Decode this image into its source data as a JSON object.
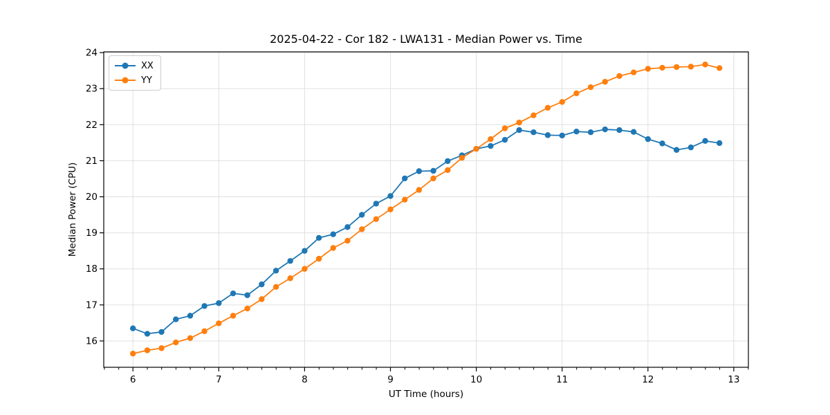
{
  "chart": {
    "title": "2025-04-22 - Cor 182 - LWA131 - Median Power vs. Time",
    "xlabel": "UT Time (hours)",
    "ylabel": "Median Power (CPU)"
  },
  "legend": {
    "items": [
      {
        "label": "XX",
        "color": "#1f77b4"
      },
      {
        "label": "YY",
        "color": "#ff7f0e"
      }
    ]
  },
  "chart_data": {
    "type": "line",
    "title": "2025-04-22 - Cor 182 - LWA131 - Median Power vs. Time",
    "xlabel": "UT Time (hours)",
    "ylabel": "Median Power (CPU)",
    "grid": true,
    "legend_position": "upper left",
    "marker": "circle",
    "xlim": [
      5.66,
      13.17
    ],
    "ylim": [
      15.27,
      24.02
    ],
    "xticks": [
      6,
      7,
      8,
      9,
      10,
      11,
      12,
      13
    ],
    "yticks": [
      16,
      17,
      18,
      19,
      20,
      21,
      22,
      23,
      24
    ],
    "x_minor_tick_step": 0.1667,
    "x": [
      6.0,
      6.167,
      6.333,
      6.5,
      6.667,
      6.833,
      7.0,
      7.167,
      7.333,
      7.5,
      7.667,
      7.833,
      8.0,
      8.167,
      8.333,
      8.5,
      8.667,
      8.833,
      9.0,
      9.167,
      9.333,
      9.5,
      9.667,
      9.833,
      10.0,
      10.167,
      10.333,
      10.5,
      10.667,
      10.833,
      11.0,
      11.167,
      11.333,
      11.5,
      11.667,
      11.833,
      12.0,
      12.167,
      12.333,
      12.5,
      12.667,
      12.833
    ],
    "series": [
      {
        "name": "XX",
        "color": "#1f77b4",
        "values": [
          16.35,
          16.2,
          16.25,
          16.6,
          16.7,
          16.97,
          17.05,
          17.32,
          17.27,
          17.57,
          17.95,
          18.22,
          18.5,
          18.86,
          18.96,
          19.16,
          19.5,
          19.81,
          20.02,
          20.51,
          20.71,
          20.72,
          20.99,
          21.15,
          21.33,
          21.41,
          21.58,
          21.85,
          21.79,
          21.71,
          21.7,
          21.81,
          21.79,
          21.87,
          21.85,
          21.8,
          21.6,
          21.48,
          21.3,
          21.37,
          21.55,
          21.49
        ]
      },
      {
        "name": "YY",
        "color": "#ff7f0e",
        "values": [
          15.65,
          15.74,
          15.8,
          15.96,
          16.08,
          16.27,
          16.49,
          16.7,
          16.9,
          17.16,
          17.5,
          17.74,
          18.0,
          18.28,
          18.58,
          18.78,
          19.1,
          19.38,
          19.65,
          19.92,
          20.19,
          20.51,
          20.74,
          21.08,
          21.33,
          21.6,
          21.9,
          22.06,
          22.26,
          22.47,
          22.63,
          22.87,
          23.04,
          23.19,
          23.35,
          23.45,
          23.55,
          23.58,
          23.6,
          23.61,
          23.67,
          23.57
        ]
      }
    ],
    "style": {
      "grid_color": "#e0e0e0",
      "spine_color": "#000000",
      "background": "#ffffff",
      "line_width": 1.8,
      "marker_radius": 4.2
    }
  }
}
